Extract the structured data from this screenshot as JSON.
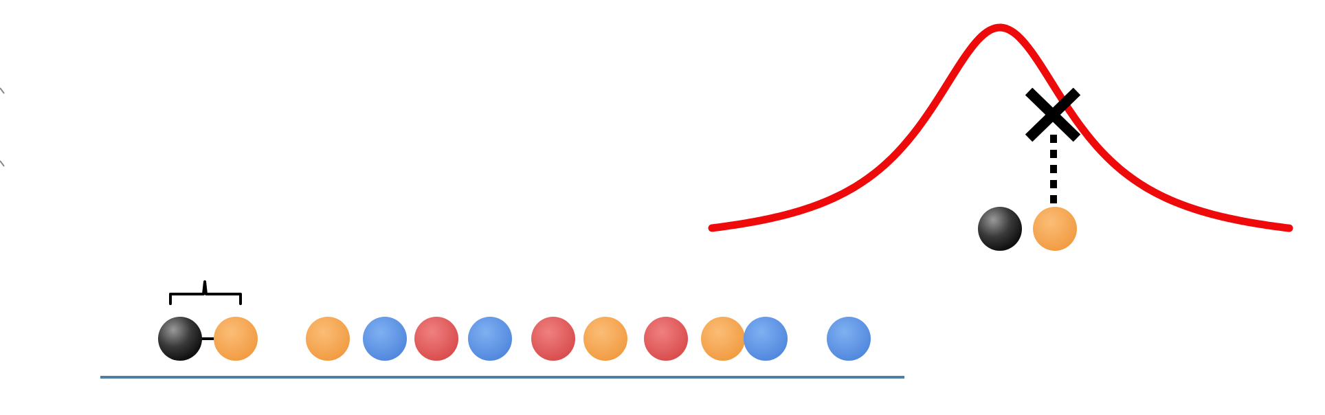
{
  "colors": {
    "background": "#ffffff",
    "curve": "#ee0a0a",
    "axis_line": "#4f7fa6",
    "gray_dot": "#3a3a3a",
    "orange_dot": "#f5a04c",
    "blue_dot": "#5d96e8",
    "red_dot": "#e35b5b",
    "marker": "#000000"
  },
  "dot_sequence": [
    "gray",
    "orange",
    "orange",
    "blue",
    "red",
    "blue",
    "red",
    "orange",
    "red",
    "orange",
    "blue",
    "blue"
  ],
  "highlighted_pair": [
    "gray",
    "orange"
  ],
  "icons": {
    "pair_bracket": "curly-brace-icon",
    "curve_point": "x-mark-icon",
    "drop_line": "dotted-line-icon"
  }
}
